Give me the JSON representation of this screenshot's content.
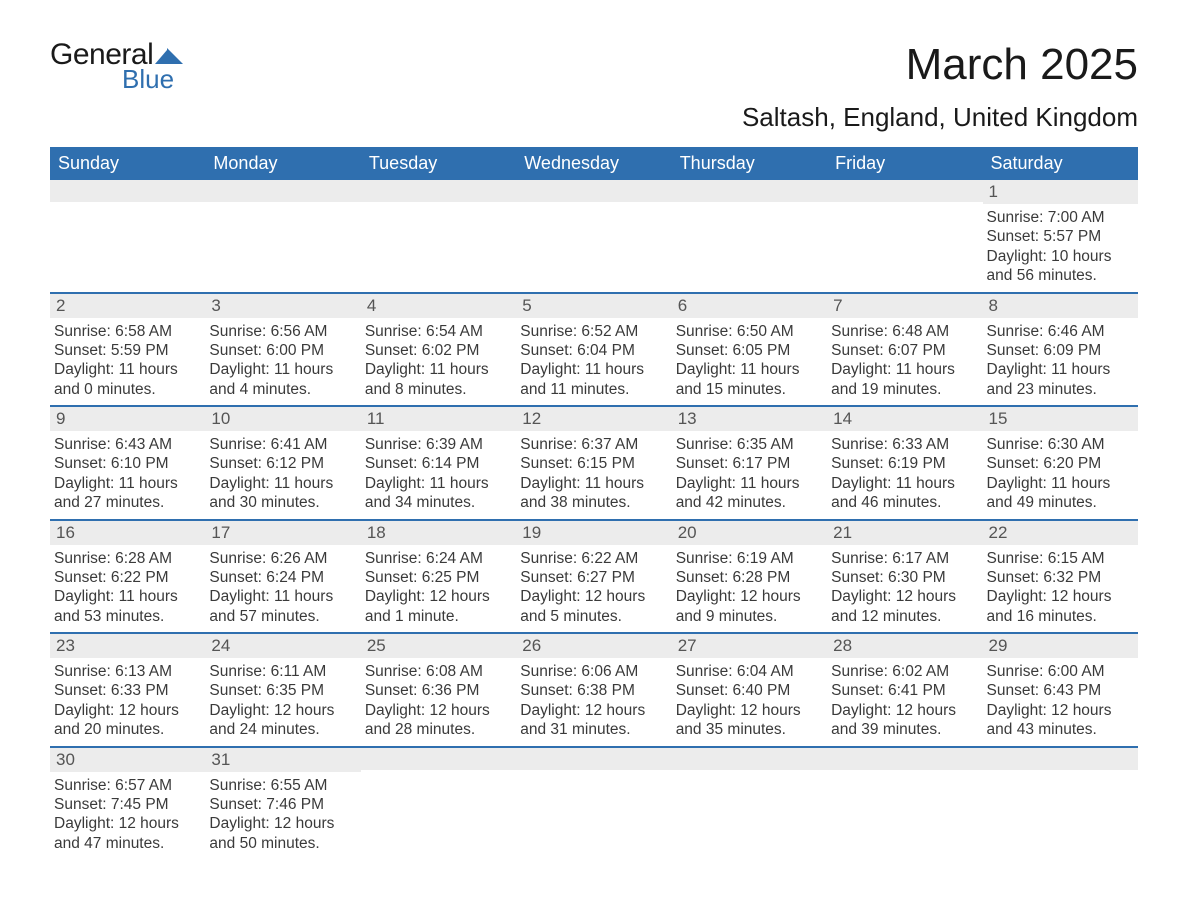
{
  "logo": {
    "textA": "General",
    "textB": "Blue",
    "brand_color": "#2f6faf"
  },
  "title": "March 2025",
  "location": "Saltash, England, United Kingdom",
  "colors": {
    "header_bg": "#2f6faf",
    "header_text": "#ffffff",
    "daynum_bg": "#ececec",
    "border": "#2f6faf",
    "body_text": "#3a3a3a"
  },
  "fonts": {
    "title_size_pt": 33,
    "location_size_pt": 20,
    "dow_size_pt": 14,
    "body_size_pt": 12
  },
  "days_of_week": [
    "Sunday",
    "Monday",
    "Tuesday",
    "Wednesday",
    "Thursday",
    "Friday",
    "Saturday"
  ],
  "weeks": [
    [
      {
        "n": "",
        "sunrise": "",
        "sunset": "",
        "daylight": ""
      },
      {
        "n": "",
        "sunrise": "",
        "sunset": "",
        "daylight": ""
      },
      {
        "n": "",
        "sunrise": "",
        "sunset": "",
        "daylight": ""
      },
      {
        "n": "",
        "sunrise": "",
        "sunset": "",
        "daylight": ""
      },
      {
        "n": "",
        "sunrise": "",
        "sunset": "",
        "daylight": ""
      },
      {
        "n": "",
        "sunrise": "",
        "sunset": "",
        "daylight": ""
      },
      {
        "n": "1",
        "sunrise": "Sunrise: 7:00 AM",
        "sunset": "Sunset: 5:57 PM",
        "daylight": "Daylight: 10 hours and 56 minutes."
      }
    ],
    [
      {
        "n": "2",
        "sunrise": "Sunrise: 6:58 AM",
        "sunset": "Sunset: 5:59 PM",
        "daylight": "Daylight: 11 hours and 0 minutes."
      },
      {
        "n": "3",
        "sunrise": "Sunrise: 6:56 AM",
        "sunset": "Sunset: 6:00 PM",
        "daylight": "Daylight: 11 hours and 4 minutes."
      },
      {
        "n": "4",
        "sunrise": "Sunrise: 6:54 AM",
        "sunset": "Sunset: 6:02 PM",
        "daylight": "Daylight: 11 hours and 8 minutes."
      },
      {
        "n": "5",
        "sunrise": "Sunrise: 6:52 AM",
        "sunset": "Sunset: 6:04 PM",
        "daylight": "Daylight: 11 hours and 11 minutes."
      },
      {
        "n": "6",
        "sunrise": "Sunrise: 6:50 AM",
        "sunset": "Sunset: 6:05 PM",
        "daylight": "Daylight: 11 hours and 15 minutes."
      },
      {
        "n": "7",
        "sunrise": "Sunrise: 6:48 AM",
        "sunset": "Sunset: 6:07 PM",
        "daylight": "Daylight: 11 hours and 19 minutes."
      },
      {
        "n": "8",
        "sunrise": "Sunrise: 6:46 AM",
        "sunset": "Sunset: 6:09 PM",
        "daylight": "Daylight: 11 hours and 23 minutes."
      }
    ],
    [
      {
        "n": "9",
        "sunrise": "Sunrise: 6:43 AM",
        "sunset": "Sunset: 6:10 PM",
        "daylight": "Daylight: 11 hours and 27 minutes."
      },
      {
        "n": "10",
        "sunrise": "Sunrise: 6:41 AM",
        "sunset": "Sunset: 6:12 PM",
        "daylight": "Daylight: 11 hours and 30 minutes."
      },
      {
        "n": "11",
        "sunrise": "Sunrise: 6:39 AM",
        "sunset": "Sunset: 6:14 PM",
        "daylight": "Daylight: 11 hours and 34 minutes."
      },
      {
        "n": "12",
        "sunrise": "Sunrise: 6:37 AM",
        "sunset": "Sunset: 6:15 PM",
        "daylight": "Daylight: 11 hours and 38 minutes."
      },
      {
        "n": "13",
        "sunrise": "Sunrise: 6:35 AM",
        "sunset": "Sunset: 6:17 PM",
        "daylight": "Daylight: 11 hours and 42 minutes."
      },
      {
        "n": "14",
        "sunrise": "Sunrise: 6:33 AM",
        "sunset": "Sunset: 6:19 PM",
        "daylight": "Daylight: 11 hours and 46 minutes."
      },
      {
        "n": "15",
        "sunrise": "Sunrise: 6:30 AM",
        "sunset": "Sunset: 6:20 PM",
        "daylight": "Daylight: 11 hours and 49 minutes."
      }
    ],
    [
      {
        "n": "16",
        "sunrise": "Sunrise: 6:28 AM",
        "sunset": "Sunset: 6:22 PM",
        "daylight": "Daylight: 11 hours and 53 minutes."
      },
      {
        "n": "17",
        "sunrise": "Sunrise: 6:26 AM",
        "sunset": "Sunset: 6:24 PM",
        "daylight": "Daylight: 11 hours and 57 minutes."
      },
      {
        "n": "18",
        "sunrise": "Sunrise: 6:24 AM",
        "sunset": "Sunset: 6:25 PM",
        "daylight": "Daylight: 12 hours and 1 minute."
      },
      {
        "n": "19",
        "sunrise": "Sunrise: 6:22 AM",
        "sunset": "Sunset: 6:27 PM",
        "daylight": "Daylight: 12 hours and 5 minutes."
      },
      {
        "n": "20",
        "sunrise": "Sunrise: 6:19 AM",
        "sunset": "Sunset: 6:28 PM",
        "daylight": "Daylight: 12 hours and 9 minutes."
      },
      {
        "n": "21",
        "sunrise": "Sunrise: 6:17 AM",
        "sunset": "Sunset: 6:30 PM",
        "daylight": "Daylight: 12 hours and 12 minutes."
      },
      {
        "n": "22",
        "sunrise": "Sunrise: 6:15 AM",
        "sunset": "Sunset: 6:32 PM",
        "daylight": "Daylight: 12 hours and 16 minutes."
      }
    ],
    [
      {
        "n": "23",
        "sunrise": "Sunrise: 6:13 AM",
        "sunset": "Sunset: 6:33 PM",
        "daylight": "Daylight: 12 hours and 20 minutes."
      },
      {
        "n": "24",
        "sunrise": "Sunrise: 6:11 AM",
        "sunset": "Sunset: 6:35 PM",
        "daylight": "Daylight: 12 hours and 24 minutes."
      },
      {
        "n": "25",
        "sunrise": "Sunrise: 6:08 AM",
        "sunset": "Sunset: 6:36 PM",
        "daylight": "Daylight: 12 hours and 28 minutes."
      },
      {
        "n": "26",
        "sunrise": "Sunrise: 6:06 AM",
        "sunset": "Sunset: 6:38 PM",
        "daylight": "Daylight: 12 hours and 31 minutes."
      },
      {
        "n": "27",
        "sunrise": "Sunrise: 6:04 AM",
        "sunset": "Sunset: 6:40 PM",
        "daylight": "Daylight: 12 hours and 35 minutes."
      },
      {
        "n": "28",
        "sunrise": "Sunrise: 6:02 AM",
        "sunset": "Sunset: 6:41 PM",
        "daylight": "Daylight: 12 hours and 39 minutes."
      },
      {
        "n": "29",
        "sunrise": "Sunrise: 6:00 AM",
        "sunset": "Sunset: 6:43 PM",
        "daylight": "Daylight: 12 hours and 43 minutes."
      }
    ],
    [
      {
        "n": "30",
        "sunrise": "Sunrise: 6:57 AM",
        "sunset": "Sunset: 7:45 PM",
        "daylight": "Daylight: 12 hours and 47 minutes."
      },
      {
        "n": "31",
        "sunrise": "Sunrise: 6:55 AM",
        "sunset": "Sunset: 7:46 PM",
        "daylight": "Daylight: 12 hours and 50 minutes."
      },
      {
        "n": "",
        "sunrise": "",
        "sunset": "",
        "daylight": ""
      },
      {
        "n": "",
        "sunrise": "",
        "sunset": "",
        "daylight": ""
      },
      {
        "n": "",
        "sunrise": "",
        "sunset": "",
        "daylight": ""
      },
      {
        "n": "",
        "sunrise": "",
        "sunset": "",
        "daylight": ""
      },
      {
        "n": "",
        "sunrise": "",
        "sunset": "",
        "daylight": ""
      }
    ]
  ]
}
